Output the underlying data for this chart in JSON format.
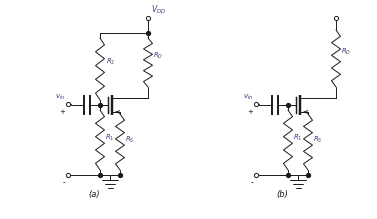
{
  "fig_width": 3.77,
  "fig_height": 2.19,
  "dpi": 100,
  "bg_color": "#ffffff",
  "line_color": "#1a1a1a",
  "line_width": 0.7,
  "dot_size": 2.8,
  "label_a": "(a)",
  "label_b": "(b)",
  "vdd_label": "$V_{DD}$",
  "r1_label": "$R_1$",
  "r2_label": "$R_2$",
  "rd_label": "$R_D$",
  "rs_label": "$R_S$",
  "vin_label": "$v_{in}$"
}
